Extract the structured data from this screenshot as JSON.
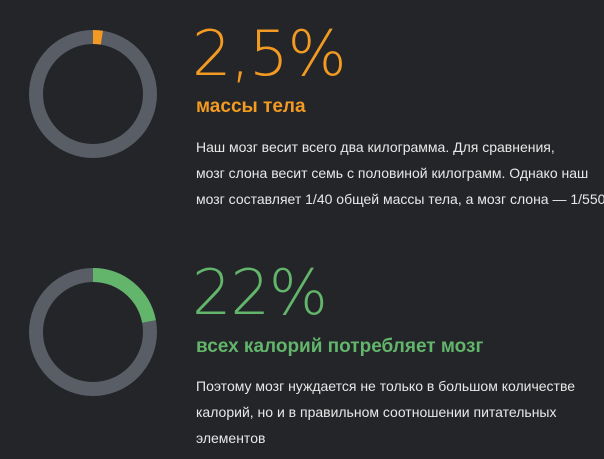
{
  "colors": {
    "background": "#232529",
    "track": "#585d66",
    "orange": "#f29a22",
    "green": "#62b56a",
    "text": "#e8e8e8"
  },
  "stats": [
    {
      "value": "2,5%",
      "fraction": 0.025,
      "color": "orange",
      "caption": "массы тела",
      "lines": [
        "Наш мозг весит всего два килограмма. Для сравнения,",
        "мозг слона весит семь с половиной килограмм. Однако наш",
        "мозг составляет 1/40 общей массы тела, а мозг слона — 1/550"
      ]
    },
    {
      "value": "22%",
      "fraction": 0.22,
      "color": "green",
      "caption": "всех калорий потребляет мозг",
      "lines": [
        "Поэтому мозг нуждается не только в большом количестве",
        "калорий, но и в правильном соотношении питательных",
        "элементов"
      ]
    }
  ]
}
